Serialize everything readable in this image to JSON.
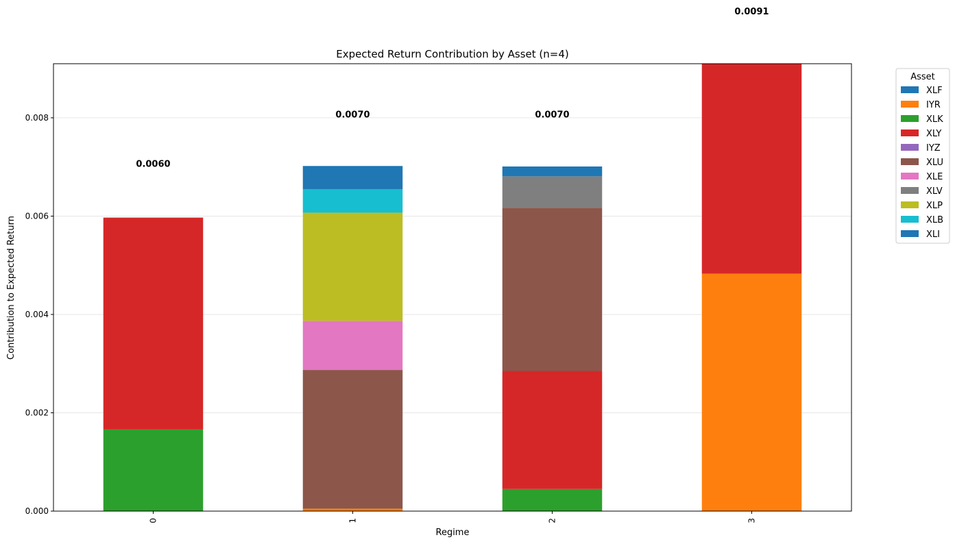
{
  "chart_data": {
    "type": "bar",
    "stacked": true,
    "title": "Expected Return Contribution by Asset (n=4)",
    "xlabel": "Regime",
    "ylabel": "Contribution to Expected Return",
    "categories": [
      "0",
      "1",
      "2",
      "3"
    ],
    "ylim": [
      0,
      0.0091
    ],
    "yticks": [
      0.0,
      0.002,
      0.004,
      0.006,
      0.008
    ],
    "ytick_labels": [
      "0.000",
      "0.002",
      "0.004",
      "0.006",
      "0.008"
    ],
    "grid": "horizontal",
    "legend_title": "Asset",
    "legend_position": "outside-top-right",
    "totals": [
      0.006,
      0.007,
      0.007,
      0.0091
    ],
    "total_labels": [
      "0.0060",
      "0.0070",
      "0.0070",
      "0.0091"
    ],
    "series": [
      {
        "name": "XLF",
        "color": "#1f77b4",
        "values": [
          0,
          0,
          0,
          0
        ]
      },
      {
        "name": "IYR",
        "color": "#ff7f0e",
        "values": [
          0,
          5e-05,
          0,
          0.00483
        ]
      },
      {
        "name": "XLK",
        "color": "#2ca02c",
        "values": [
          0.00166,
          0,
          0.00045,
          0
        ]
      },
      {
        "name": "XLY",
        "color": "#d62728",
        "values": [
          0.00431,
          0,
          0.0024,
          0.0043
        ]
      },
      {
        "name": "IYZ",
        "color": "#9467bd",
        "values": [
          0,
          0,
          0,
          0
        ]
      },
      {
        "name": "XLU",
        "color": "#8c564b",
        "values": [
          0,
          0.00282,
          0.00332,
          0
        ]
      },
      {
        "name": "XLE",
        "color": "#e377c2",
        "values": [
          0,
          0.001,
          0,
          0
        ]
      },
      {
        "name": "XLV",
        "color": "#7f7f7f",
        "values": [
          0,
          0,
          0.00064,
          0
        ]
      },
      {
        "name": "XLP",
        "color": "#bcbd22",
        "values": [
          0,
          0.0022,
          0,
          0
        ]
      },
      {
        "name": "XLB",
        "color": "#17becf",
        "values": [
          0,
          0.00048,
          0,
          0
        ]
      },
      {
        "name": "XLI",
        "color": "#1f77b4",
        "values": [
          0,
          0.00047,
          0.0002,
          0
        ]
      }
    ]
  }
}
